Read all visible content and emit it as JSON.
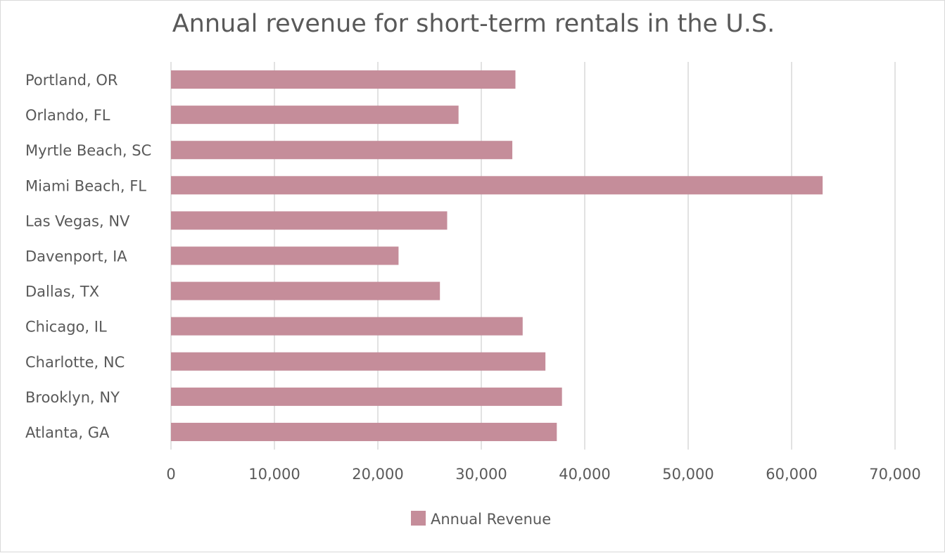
{
  "chart_data": {
    "type": "bar",
    "orientation": "horizontal",
    "title": "Annual revenue for short-term rentals in the U.S.",
    "categories": [
      "Atlanta, GA",
      "Brooklyn, NY",
      "Charlotte, NC",
      "Chicago, IL",
      "Dallas, TX",
      "Davenport, IA",
      "Las Vegas, NV",
      "Miami Beach, FL",
      "Myrtle Beach, SC",
      "Orlando, FL",
      "Portland, OR"
    ],
    "series": [
      {
        "name": "Annual Revenue",
        "color": "#c58d9a",
        "values": [
          37300,
          37800,
          36200,
          34000,
          26000,
          22000,
          26700,
          63000,
          33000,
          27800,
          33300
        ]
      }
    ],
    "xlabel": "",
    "ylabel": "",
    "xlim": [
      0,
      70000
    ],
    "ticks": [
      0,
      10000,
      20000,
      30000,
      40000,
      50000,
      60000,
      70000
    ],
    "tick_labels": [
      "0",
      "10,000",
      "20,000",
      "30,000",
      "40,000",
      "50,000",
      "60,000",
      "70,000"
    ],
    "grid": true,
    "legend": {
      "position": "bottom",
      "entries": [
        "Annual Revenue"
      ]
    }
  }
}
